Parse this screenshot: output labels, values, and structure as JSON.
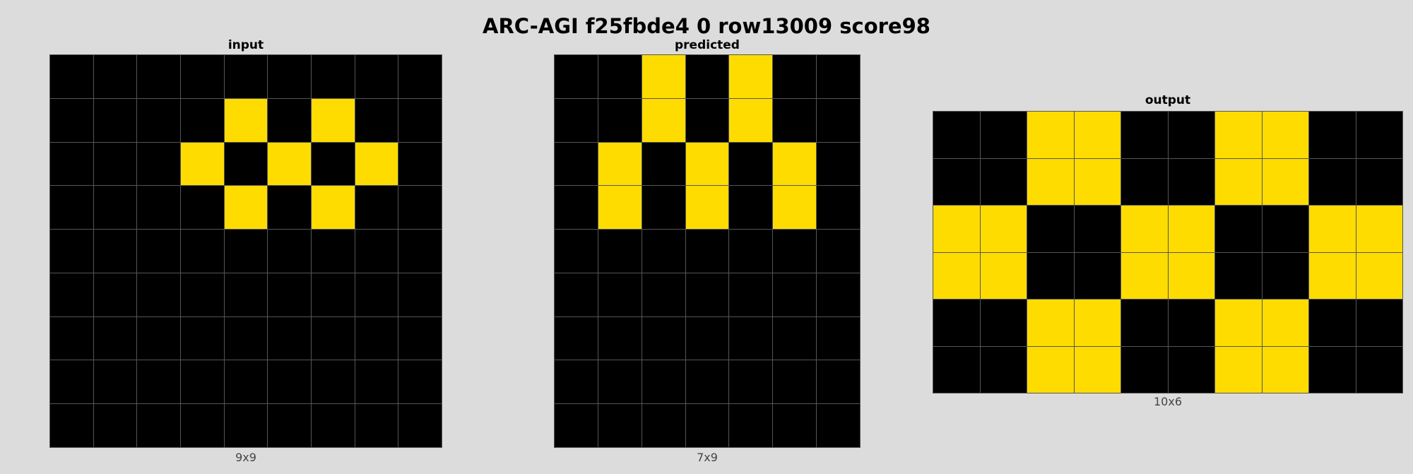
{
  "title": "ARC-AGI f25fbde4 0 row13009 score98",
  "palette": {
    "0": "#000000",
    "4": "#FFDC00"
  },
  "panels": [
    {
      "id": "input",
      "label": "input",
      "dims": "9x9",
      "cols": 9,
      "rows": 9,
      "grid": [
        [
          0,
          0,
          0,
          0,
          0,
          0,
          0,
          0,
          0
        ],
        [
          0,
          0,
          0,
          0,
          4,
          0,
          4,
          0,
          0
        ],
        [
          0,
          0,
          0,
          4,
          0,
          4,
          0,
          4,
          0
        ],
        [
          0,
          0,
          0,
          0,
          4,
          0,
          4,
          0,
          0
        ],
        [
          0,
          0,
          0,
          0,
          0,
          0,
          0,
          0,
          0
        ],
        [
          0,
          0,
          0,
          0,
          0,
          0,
          0,
          0,
          0
        ],
        [
          0,
          0,
          0,
          0,
          0,
          0,
          0,
          0,
          0
        ],
        [
          0,
          0,
          0,
          0,
          0,
          0,
          0,
          0,
          0
        ],
        [
          0,
          0,
          0,
          0,
          0,
          0,
          0,
          0,
          0
        ]
      ]
    },
    {
      "id": "predicted",
      "label": "predicted",
      "dims": "7x9",
      "cols": 7,
      "rows": 9,
      "grid": [
        [
          0,
          0,
          4,
          0,
          4,
          0,
          0
        ],
        [
          0,
          0,
          4,
          0,
          4,
          0,
          0
        ],
        [
          0,
          4,
          0,
          4,
          0,
          4,
          0
        ],
        [
          0,
          4,
          0,
          4,
          0,
          4,
          0
        ],
        [
          0,
          0,
          0,
          0,
          0,
          0,
          0
        ],
        [
          0,
          0,
          0,
          0,
          0,
          0,
          0
        ],
        [
          0,
          0,
          0,
          0,
          0,
          0,
          0
        ],
        [
          0,
          0,
          0,
          0,
          0,
          0,
          0
        ],
        [
          0,
          0,
          0,
          0,
          0,
          0,
          0
        ]
      ]
    },
    {
      "id": "output",
      "label": "output",
      "dims": "10x6",
      "cols": 10,
      "rows": 6,
      "grid": [
        [
          0,
          0,
          4,
          4,
          0,
          0,
          4,
          4,
          0,
          0
        ],
        [
          0,
          0,
          4,
          4,
          0,
          0,
          4,
          4,
          0,
          0
        ],
        [
          4,
          4,
          0,
          0,
          4,
          4,
          0,
          0,
          4,
          4
        ],
        [
          4,
          4,
          0,
          0,
          4,
          4,
          0,
          0,
          4,
          4
        ],
        [
          0,
          0,
          4,
          4,
          0,
          0,
          4,
          4,
          0,
          0
        ],
        [
          0,
          0,
          4,
          4,
          0,
          0,
          4,
          4,
          0,
          0
        ]
      ]
    }
  ]
}
